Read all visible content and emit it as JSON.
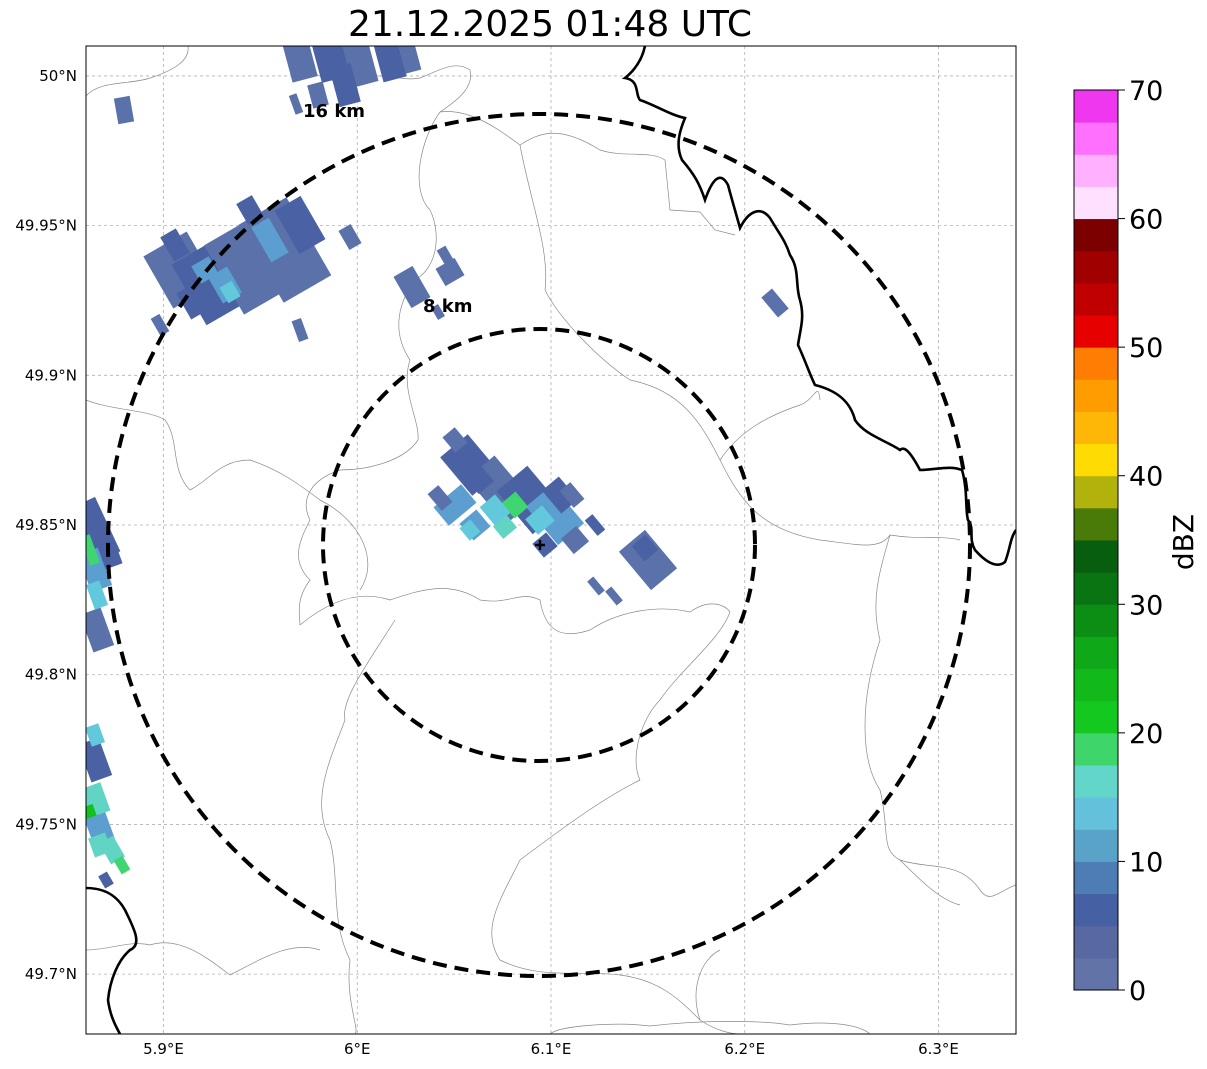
{
  "title": "21.12.2025 01:48 UTC",
  "map": {
    "lon_range": [
      5.86,
      6.34
    ],
    "lat_range": [
      49.68,
      50.01
    ],
    "x_ticks": [
      {
        "value": 5.9,
        "label": "5.9°E"
      },
      {
        "value": 6.0,
        "label": "6°E"
      },
      {
        "value": 6.1,
        "label": "6.1°E"
      },
      {
        "value": 6.2,
        "label": "6.2°E"
      },
      {
        "value": 6.3,
        "label": "6.3°E"
      }
    ],
    "y_ticks": [
      {
        "value": 50.0,
        "label": "50°N"
      },
      {
        "value": 49.95,
        "label": "49.95°N"
      },
      {
        "value": 49.9,
        "label": "49.9°N"
      },
      {
        "value": 49.85,
        "label": "49.85°N"
      },
      {
        "value": 49.8,
        "label": "49.8°N"
      },
      {
        "value": 49.75,
        "label": "49.75°N"
      },
      {
        "value": 49.7,
        "label": "49.7°N"
      }
    ],
    "gridlines": true,
    "center": {
      "lon": 6.095,
      "lat": 49.843,
      "marker": "+"
    },
    "rings": [
      {
        "label": "8 km",
        "radius_km": 8,
        "style": "dashed"
      },
      {
        "label": "16 km",
        "radius_km": 16,
        "style": "dashed"
      }
    ]
  },
  "colorbar": {
    "label": "dBZ",
    "ticks": [
      "0",
      "10",
      "20",
      "30",
      "40",
      "50",
      "60",
      "70"
    ],
    "colors": [
      "#6173a7",
      "#5868a0",
      "#4660a4",
      "#4e7db5",
      "#5aa3c8",
      "#64c1dc",
      "#62d7c9",
      "#3ed66a",
      "#13c920",
      "#12b91a",
      "#0fa818",
      "#0c8e14",
      "#0a7412",
      "#075e0e",
      "#4a7a08",
      "#b1b20b",
      "#fedb02",
      "#feb706",
      "#fe9c00",
      "#fe7d02",
      "#e60000",
      "#c00000",
      "#a00000",
      "#7d0000",
      "#ffe1ff",
      "#ffb0ff",
      "#ff70ff",
      "#ef37ef"
    ]
  },
  "echo_colors": {
    "dark": "#4a62a3",
    "mid": "#5a72a9",
    "light": "#5c9ed0",
    "cyan": "#62c8dc",
    "teal": "#62d4c4",
    "green": "#3fd672",
    "bright": "#14c020"
  }
}
